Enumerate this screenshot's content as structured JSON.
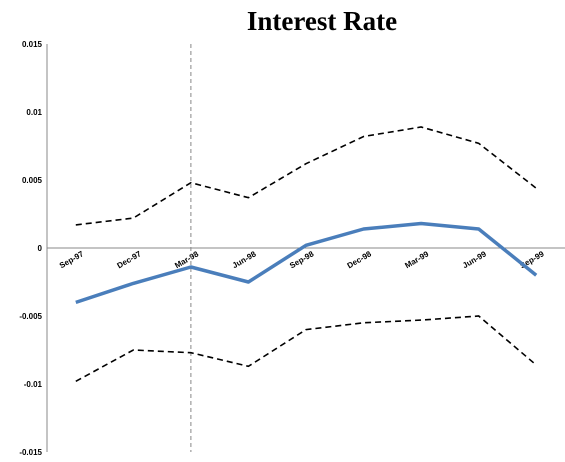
{
  "chart_data": {
    "type": "line",
    "title": "Interest Rate",
    "xlabel": "",
    "ylabel": "",
    "categories": [
      "Sep-97",
      "Dec-97",
      "Mar-98",
      "Jun-98",
      "Sep-98",
      "Dec-98",
      "Mar-99",
      "Jun-99",
      "Sep-99"
    ],
    "ylim": [
      -0.015,
      0.015
    ],
    "y_ticks": [
      "0.015",
      "0.01",
      "0.005",
      "0",
      "-0.005",
      "-0.01",
      "-0.015"
    ],
    "y_tick_values": [
      0.015,
      0.01,
      0.005,
      0,
      -0.005,
      -0.01,
      -0.015
    ],
    "grid": false,
    "legend": "none",
    "vertical_marker_at": "Mar-98",
    "series": [
      {
        "role": "estimate",
        "values": [
          -0.004,
          -0.0026,
          -0.0014,
          -0.0025,
          0.0002,
          0.0014,
          0.0018,
          0.0014,
          -0.002
        ],
        "color": "#4a7ebb",
        "style": "solid"
      },
      {
        "role": "upper-band",
        "values": [
          0.0017,
          0.0022,
          0.0048,
          0.0037,
          0.0062,
          0.0082,
          0.0089,
          0.0077,
          0.0044
        ],
        "color": "#000000",
        "style": "dashed"
      },
      {
        "role": "lower-band",
        "values": [
          -0.0098,
          -0.0075,
          -0.0077,
          -0.0087,
          -0.006,
          -0.0055,
          -0.0053,
          -0.005,
          -0.0086
        ],
        "color": "#000000",
        "style": "dashed"
      }
    ]
  }
}
